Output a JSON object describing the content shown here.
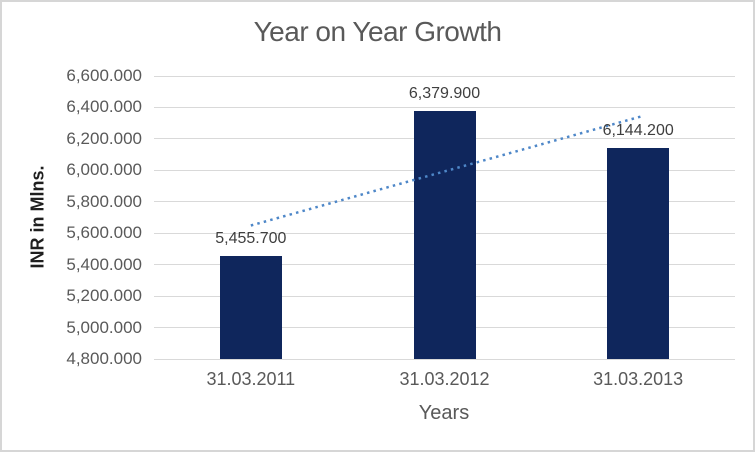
{
  "chart_data": {
    "type": "bar",
    "title": "Year on Year Growth",
    "xlabel": "Years",
    "ylabel": "INR in Mlns.",
    "categories": [
      "31.03.2011",
      "31.03.2012",
      "31.03.2013"
    ],
    "values": [
      5455.7,
      6379.9,
      6144.2
    ],
    "value_labels": [
      "5,455.700",
      "6,379.900",
      "6,144.200"
    ],
    "ylim": [
      4800,
      6600
    ],
    "y_tick_step": 200,
    "y_ticks": [
      {
        "value": 6600,
        "label": "6,600.000"
      },
      {
        "value": 6400,
        "label": "6,400.000"
      },
      {
        "value": 6200,
        "label": "6,200.000"
      },
      {
        "value": 6000,
        "label": "6,000.000"
      },
      {
        "value": 5800,
        "label": "5,800.000"
      },
      {
        "value": 5600,
        "label": "5,600.000"
      },
      {
        "value": 5400,
        "label": "5,400.000"
      },
      {
        "value": 5200,
        "label": "5,200.000"
      },
      {
        "value": 5000,
        "label": "5,000.000"
      },
      {
        "value": 4800,
        "label": "4,800.000"
      }
    ],
    "grid": true,
    "legend": false,
    "trendline": {
      "type": "linear",
      "style": "dotted"
    },
    "colors": {
      "bar": "#0f265c",
      "trendline": "#4e87c8",
      "gridline": "#d9d9d9",
      "border": "#d6d6d6",
      "background": "#ffffff",
      "title_text": "#595959",
      "tick_text": "#595959",
      "data_label_text": "#3f3f3f",
      "axis_title_text": "#1f1f1f"
    }
  }
}
